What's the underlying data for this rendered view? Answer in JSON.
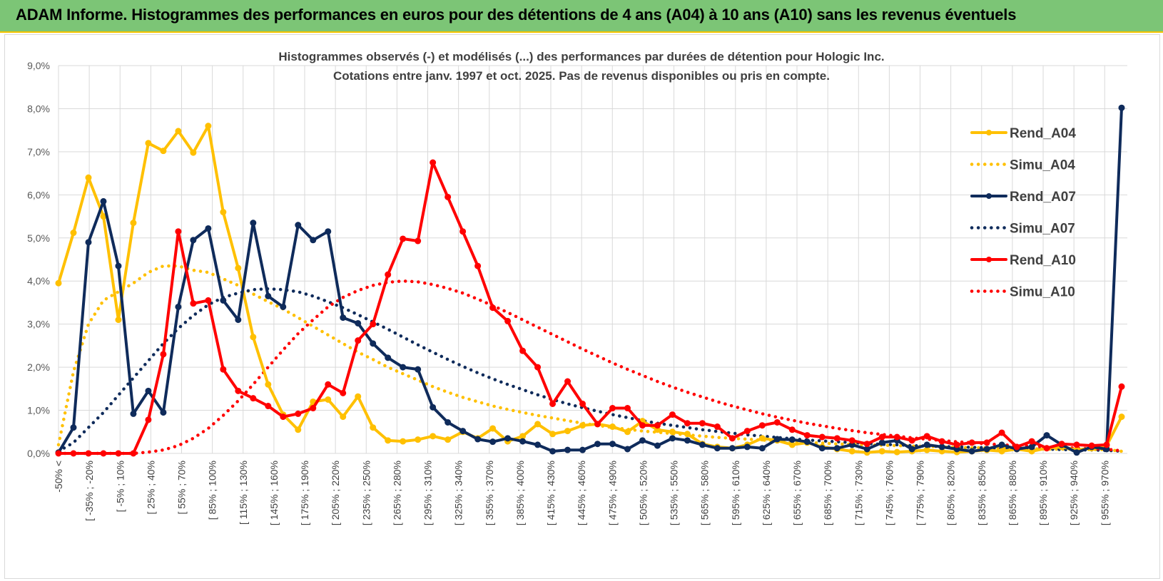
{
  "banner": {
    "title": "ADAM Informe. Histogrammes des performances en euros pour des détentions de 4 ans (A04) à 10 ans (A10) sans les revenus éventuels",
    "background_color": "#7cc576",
    "accent_color": "#f5c400"
  },
  "chart_data": {
    "type": "line",
    "title": "Histogrammes observés (-) et modélisés (...) des performances par durées de détention pour Hologic Inc.",
    "subtitle": "Cotations entre janv. 1997 et oct. 2025. Pas de revenus disponibles ou pris en compte.",
    "xlabel": "",
    "ylabel": "",
    "ylim": [
      0,
      9
    ],
    "y_ticks": [
      "0,0%",
      "1,0%",
      "2,0%",
      "3,0%",
      "4,0%",
      "5,0%",
      "6,0%",
      "7,0%",
      "8,0%",
      "9,0%"
    ],
    "grid": true,
    "legend_position": "right",
    "x_tick_labels": [
      "-50% <",
      "[ -35% ; -20%",
      "[ -5% ; 10%",
      "[ 25% ; 40%",
      "[ 55% ; 70%",
      "[ 85% ; 100%",
      "[ 115% ; 130%",
      "[ 145% ; 160%",
      "[ 175% ; 190%",
      "[ 205% ; 220%",
      "[ 235% ; 250%",
      "[ 265% ; 280%",
      "[ 295% ; 310%",
      "[ 325% ; 340%",
      "[ 355% ; 370%",
      "[ 385% ; 400%",
      "[ 415% ; 430%",
      "[ 445% ; 460%",
      "[ 475% ; 490%",
      "[ 505% ; 520%",
      "[ 535% ; 550%",
      "[ 565% ; 580%",
      "[ 595% ; 610%",
      "[ 625% ; 640%",
      "[ 655% ; 670%",
      "[ 685% ; 700%",
      "[ 715% ; 730%",
      "[ 745% ; 760%",
      "[ 775% ; 790%",
      "[ 805% ; 820%",
      "[ 835% ; 850%",
      "[ 865% ; 880%",
      "[ 895% ; 910%",
      "[ 925% ; 940%",
      "[ 955% ; 970%"
    ],
    "series": [
      {
        "name": "Rend_A04",
        "color": "#ffc000",
        "style": "solid",
        "markers": true,
        "values": [
          3.95,
          5.12,
          6.4,
          5.5,
          3.1,
          5.35,
          7.2,
          7.02,
          7.48,
          6.98,
          7.6,
          5.6,
          4.3,
          2.7,
          1.6,
          0.9,
          0.55,
          1.2,
          1.25,
          0.85,
          1.32,
          0.6,
          0.3,
          0.28,
          0.32,
          0.4,
          0.32,
          0.5,
          0.35,
          0.58,
          0.28,
          0.4,
          0.68,
          0.45,
          0.52,
          0.65,
          0.68,
          0.62,
          0.5,
          0.75,
          0.55,
          0.5,
          0.45,
          0.22,
          0.15,
          0.12,
          0.2,
          0.35,
          0.3,
          0.2,
          0.25,
          0.15,
          0.1,
          0.05,
          0.02,
          0.05,
          0.03,
          0.05,
          0.08,
          0.05,
          0.03,
          0.05,
          0.08,
          0.05,
          0.1,
          0.05,
          0.12,
          0.15,
          0.08,
          0.12,
          0.18,
          0.85
        ]
      },
      {
        "name": "Simu_A04",
        "color": "#ffc000",
        "style": "dotted",
        "markers": false,
        "values": [
          0.2,
          1.9,
          3.0,
          3.55,
          3.75,
          3.95,
          4.2,
          4.35,
          4.35,
          4.25,
          4.2,
          4.05,
          3.9,
          3.7,
          3.52,
          3.35,
          3.15,
          2.95,
          2.75,
          2.55,
          2.35,
          2.18,
          2.0,
          1.85,
          1.7,
          1.55,
          1.42,
          1.3,
          1.2,
          1.1,
          1.02,
          0.95,
          0.88,
          0.82,
          0.76,
          0.7,
          0.65,
          0.6,
          0.56,
          0.52,
          0.49,
          0.46,
          0.43,
          0.4,
          0.37,
          0.35,
          0.33,
          0.31,
          0.29,
          0.27,
          0.25,
          0.24,
          0.22,
          0.21,
          0.2,
          0.19,
          0.18,
          0.17,
          0.16,
          0.15,
          0.14,
          0.13,
          0.13,
          0.12,
          0.12,
          0.11,
          0.1,
          0.1,
          0.1,
          0.09,
          0.09,
          0.05
        ]
      },
      {
        "name": "Rend_A07",
        "color": "#0f2b5b",
        "style": "solid",
        "markers": true,
        "values": [
          0.02,
          0.6,
          4.9,
          5.85,
          4.35,
          0.92,
          1.45,
          0.95,
          3.4,
          4.95,
          5.22,
          3.55,
          3.1,
          5.35,
          3.65,
          3.4,
          5.3,
          4.95,
          5.15,
          3.15,
          3.02,
          2.55,
          2.22,
          2.0,
          1.95,
          1.07,
          0.72,
          0.52,
          0.33,
          0.27,
          0.35,
          0.28,
          0.2,
          0.05,
          0.08,
          0.08,
          0.22,
          0.22,
          0.1,
          0.3,
          0.18,
          0.35,
          0.3,
          0.2,
          0.12,
          0.12,
          0.15,
          0.12,
          0.33,
          0.32,
          0.27,
          0.12,
          0.12,
          0.2,
          0.1,
          0.25,
          0.3,
          0.1,
          0.2,
          0.15,
          0.1,
          0.05,
          0.1,
          0.2,
          0.1,
          0.15,
          0.42,
          0.2,
          0.02,
          0.15,
          0.1,
          8.02
        ]
      },
      {
        "name": "Simu_A07",
        "color": "#0f2b5b",
        "style": "dotted",
        "markers": false,
        "values": [
          0.05,
          0.25,
          0.6,
          0.95,
          1.35,
          1.75,
          2.15,
          2.55,
          2.9,
          3.2,
          3.45,
          3.62,
          3.72,
          3.8,
          3.82,
          3.8,
          3.75,
          3.65,
          3.52,
          3.38,
          3.22,
          3.05,
          2.88,
          2.7,
          2.52,
          2.35,
          2.18,
          2.02,
          1.87,
          1.73,
          1.6,
          1.48,
          1.36,
          1.25,
          1.15,
          1.06,
          0.98,
          0.9,
          0.83,
          0.76,
          0.7,
          0.65,
          0.6,
          0.55,
          0.51,
          0.47,
          0.43,
          0.4,
          0.37,
          0.34,
          0.31,
          0.29,
          0.27,
          0.25,
          0.23,
          0.21,
          0.2,
          0.18,
          0.17,
          0.16,
          0.15,
          0.14,
          0.13,
          0.12,
          0.11,
          0.1,
          0.1,
          0.09,
          0.08,
          0.08,
          0.07,
          0.05
        ]
      },
      {
        "name": "Rend_A10",
        "color": "#ff0000",
        "style": "solid",
        "markers": true,
        "values": [
          0.0,
          0.0,
          0.0,
          0.0,
          0.0,
          0.0,
          0.78,
          2.3,
          5.15,
          3.48,
          3.55,
          1.95,
          1.45,
          1.28,
          1.1,
          0.85,
          0.92,
          1.05,
          1.6,
          1.4,
          2.62,
          3.0,
          4.15,
          4.98,
          4.93,
          6.75,
          5.95,
          5.15,
          4.35,
          3.38,
          3.07,
          2.38,
          2.0,
          1.15,
          1.67,
          1.15,
          0.68,
          1.05,
          1.05,
          0.65,
          0.65,
          0.9,
          0.7,
          0.7,
          0.62,
          0.35,
          0.52,
          0.65,
          0.72,
          0.55,
          0.42,
          0.38,
          0.35,
          0.3,
          0.22,
          0.38,
          0.38,
          0.3,
          0.4,
          0.28,
          0.2,
          0.25,
          0.25,
          0.48,
          0.15,
          0.28,
          0.12,
          0.22,
          0.2,
          0.18,
          0.2,
          1.55
        ]
      },
      {
        "name": "Simu_A10",
        "color": "#ff0000",
        "style": "dotted",
        "markers": false,
        "values": [
          0.0,
          0.0,
          0.0,
          0.0,
          0.0,
          0.0,
          0.03,
          0.08,
          0.18,
          0.35,
          0.58,
          0.88,
          1.22,
          1.6,
          2.0,
          2.4,
          2.78,
          3.1,
          3.4,
          3.62,
          3.78,
          3.9,
          3.97,
          4.0,
          3.98,
          3.92,
          3.83,
          3.72,
          3.58,
          3.43,
          3.27,
          3.1,
          2.93,
          2.76,
          2.59,
          2.42,
          2.26,
          2.1,
          1.95,
          1.81,
          1.67,
          1.54,
          1.42,
          1.31,
          1.2,
          1.1,
          1.01,
          0.92,
          0.84,
          0.77,
          0.7,
          0.64,
          0.58,
          0.53,
          0.48,
          0.44,
          0.4,
          0.36,
          0.33,
          0.3,
          0.27,
          0.25,
          0.22,
          0.2,
          0.18,
          0.17,
          0.15,
          0.14,
          0.12,
          0.11,
          0.1,
          0.06
        ]
      }
    ]
  }
}
